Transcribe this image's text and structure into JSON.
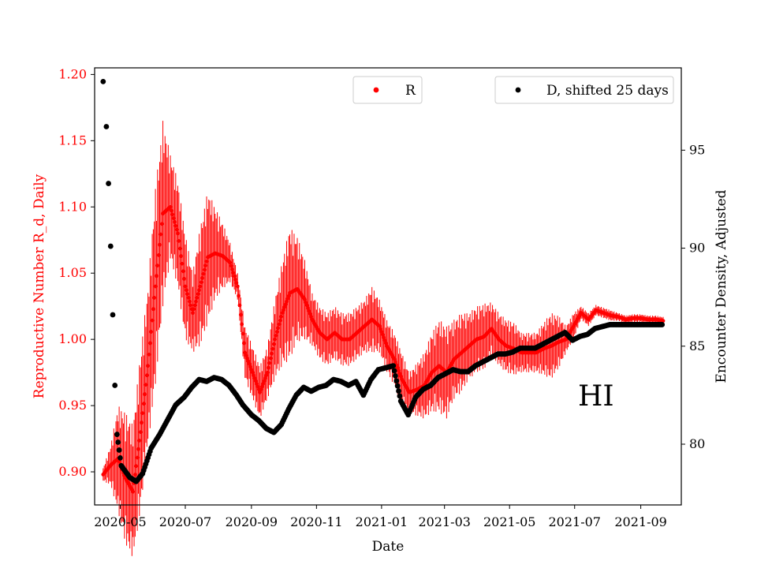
{
  "chart_data": {
    "type": "scatter",
    "title": "",
    "xlabel": "Date",
    "ylabel_left": "Reproductive Number R_d, Daily",
    "ylabel_right": "Encounter Density, Adjusted",
    "annotation": "HI",
    "x_range": [
      "2020-04-07",
      "2021-10-09"
    ],
    "x_ticks": [
      "2020-05",
      "2020-07",
      "2020-09",
      "2020-11",
      "2021-01",
      "2021-03",
      "2021-05",
      "2021-07",
      "2021-09"
    ],
    "ylim_left": [
      0.875,
      1.205
    ],
    "yticks_left": [
      "0.90",
      "0.95",
      "1.00",
      "1.05",
      "1.10",
      "1.15",
      "1.20"
    ],
    "ylim_right": [
      76.9,
      99.2
    ],
    "yticks_right": [
      "80",
      "85",
      "90",
      "95"
    ],
    "legend": [
      {
        "label": "R",
        "color": "#ff0000",
        "placement": "top-center"
      },
      {
        "label": "D, shifted 25 days",
        "color": "#000000",
        "placement": "top-right"
      }
    ],
    "colors": {
      "R": "#ff0000",
      "D": "#000000",
      "left_axis": "#ff0000",
      "right_axis": "#000000"
    },
    "series": [
      {
        "name": "R",
        "axis": "left",
        "marker": "dot with vertical error bars",
        "color": "#ff0000",
        "x": [
          "2020-04-15",
          "2020-04-22",
          "2020-04-29",
          "2020-05-06",
          "2020-05-13",
          "2020-05-20",
          "2020-05-27",
          "2020-06-03",
          "2020-06-10",
          "2020-06-17",
          "2020-06-24",
          "2020-07-01",
          "2020-07-08",
          "2020-07-15",
          "2020-07-22",
          "2020-07-29",
          "2020-08-05",
          "2020-08-12",
          "2020-08-19",
          "2020-08-26",
          "2020-09-02",
          "2020-09-09",
          "2020-09-16",
          "2020-09-23",
          "2020-09-30",
          "2020-10-07",
          "2020-10-14",
          "2020-10-21",
          "2020-10-28",
          "2020-11-04",
          "2020-11-11",
          "2020-11-18",
          "2020-11-25",
          "2020-12-02",
          "2020-12-09",
          "2020-12-16",
          "2020-12-23",
          "2020-12-30",
          "2021-01-06",
          "2021-01-13",
          "2021-01-20",
          "2021-01-27",
          "2021-02-03",
          "2021-02-10",
          "2021-02-17",
          "2021-02-24",
          "2021-03-03",
          "2021-03-10",
          "2021-03-17",
          "2021-03-24",
          "2021-03-31",
          "2021-04-07",
          "2021-04-14",
          "2021-04-21",
          "2021-04-28",
          "2021-05-05",
          "2021-05-12",
          "2021-05-19",
          "2021-05-26",
          "2021-06-02",
          "2021-06-09",
          "2021-06-16",
          "2021-06-23",
          "2021-06-30",
          "2021-07-07",
          "2021-07-14",
          "2021-07-21",
          "2021-07-28",
          "2021-08-04",
          "2021-08-11",
          "2021-08-18",
          "2021-08-25",
          "2021-09-01",
          "2021-09-08",
          "2021-09-15",
          "2021-09-22"
        ],
        "values": [
          0.898,
          0.905,
          0.91,
          0.895,
          0.885,
          0.93,
          0.98,
          1.04,
          1.095,
          1.1,
          1.08,
          1.04,
          1.02,
          1.04,
          1.062,
          1.065,
          1.063,
          1.058,
          1.04,
          0.99,
          0.975,
          0.96,
          0.975,
          1.0,
          1.02,
          1.035,
          1.038,
          1.03,
          1.015,
          1.005,
          1.0,
          1.005,
          1.0,
          1.0,
          1.005,
          1.01,
          1.015,
          1.01,
          0.995,
          0.985,
          0.97,
          0.96,
          0.962,
          0.965,
          0.975,
          0.98,
          0.975,
          0.985,
          0.99,
          0.995,
          1.0,
          1.002,
          1.008,
          1.0,
          0.995,
          0.993,
          0.99,
          0.99,
          0.99,
          0.993,
          0.995,
          0.998,
          1.0,
          1.01,
          1.02,
          1.015,
          1.022,
          1.02,
          1.018,
          1.017,
          1.015,
          1.016,
          1.016,
          1.015,
          1.015,
          1.014
        ],
        "error": [
          0.005,
          0.015,
          0.04,
          0.05,
          0.05,
          0.06,
          0.06,
          0.075,
          0.07,
          0.04,
          0.04,
          0.04,
          0.03,
          0.045,
          0.05,
          0.035,
          0.025,
          0.015,
          0.01,
          0.02,
          0.02,
          0.02,
          0.02,
          0.03,
          0.04,
          0.05,
          0.04,
          0.03,
          0.02,
          0.02,
          0.02,
          0.02,
          0.02,
          0.02,
          0.02,
          0.02,
          0.025,
          0.02,
          0.02,
          0.02,
          0.02,
          0.015,
          0.02,
          0.025,
          0.03,
          0.035,
          0.035,
          0.03,
          0.03,
          0.025,
          0.025,
          0.025,
          0.02,
          0.02,
          0.02,
          0.02,
          0.015,
          0.015,
          0.015,
          0.02,
          0.025,
          0.02,
          0.01,
          0.01,
          0.005,
          0.005,
          0.004,
          0.004,
          0.004,
          0.003,
          0.003,
          0.003,
          0.003,
          0.003,
          0.003,
          0.003
        ]
      },
      {
        "name": "D, shifted 25 days",
        "axis": "right",
        "marker": "dot",
        "color": "#000000",
        "x": [
          "2020-04-15",
          "2020-04-18",
          "2020-04-20",
          "2020-04-22",
          "2020-04-24",
          "2020-04-26",
          "2020-04-28",
          "2020-05-02",
          "2020-05-06",
          "2020-05-10",
          "2020-05-16",
          "2020-05-22",
          "2020-05-30",
          "2020-06-07",
          "2020-06-15",
          "2020-06-22",
          "2020-06-30",
          "2020-07-07",
          "2020-07-14",
          "2020-07-21",
          "2020-07-28",
          "2020-08-04",
          "2020-08-11",
          "2020-08-18",
          "2020-08-24",
          "2020-09-01",
          "2020-09-08",
          "2020-09-15",
          "2020-09-22",
          "2020-09-29",
          "2020-10-06",
          "2020-10-13",
          "2020-10-20",
          "2020-10-27",
          "2020-11-03",
          "2020-11-10",
          "2020-11-17",
          "2020-11-24",
          "2020-12-01",
          "2020-12-08",
          "2020-12-15",
          "2020-12-22",
          "2020-12-29",
          "2021-01-05",
          "2021-01-12",
          "2021-01-19",
          "2021-01-26",
          "2021-02-02",
          "2021-02-09",
          "2021-02-16",
          "2021-02-23",
          "2021-03-02",
          "2021-03-09",
          "2021-03-16",
          "2021-03-23",
          "2021-03-30",
          "2021-04-06",
          "2021-04-13",
          "2021-04-20",
          "2021-04-27",
          "2021-05-04",
          "2021-05-11",
          "2021-05-18",
          "2021-05-25",
          "2021-06-01",
          "2021-06-08",
          "2021-06-15",
          "2021-06-22",
          "2021-06-29",
          "2021-07-06",
          "2021-07-13",
          "2021-07-20",
          "2021-07-27",
          "2021-08-03",
          "2021-08-10",
          "2021-08-17",
          "2021-08-24",
          "2021-08-31",
          "2021-09-07",
          "2021-09-14",
          "2021-09-21"
        ],
        "values": [
          98.5,
          96.2,
          93.3,
          90.1,
          86.6,
          83.0,
          80.5,
          78.9,
          78.6,
          78.3,
          78.1,
          78.5,
          79.8,
          80.5,
          81.3,
          82.0,
          82.4,
          82.9,
          83.3,
          83.2,
          83.4,
          83.3,
          83.0,
          82.5,
          82.0,
          81.5,
          81.2,
          80.8,
          80.6,
          81.0,
          81.8,
          82.5,
          82.9,
          82.7,
          82.9,
          83.0,
          83.3,
          83.2,
          83.0,
          83.2,
          82.5,
          83.3,
          83.8,
          83.9,
          84.0,
          82.2,
          81.5,
          82.4,
          82.8,
          83.0,
          83.4,
          83.6,
          83.8,
          83.7,
          83.7,
          84.0,
          84.2,
          84.4,
          84.6,
          84.6,
          84.7,
          84.9,
          84.9,
          84.9,
          85.1,
          85.3,
          85.5,
          85.7,
          85.3,
          85.5,
          85.6,
          85.9,
          86.0,
          86.1,
          86.1,
          86.1,
          86.1,
          86.1,
          86.1,
          86.1,
          86.1
        ]
      }
    ]
  }
}
